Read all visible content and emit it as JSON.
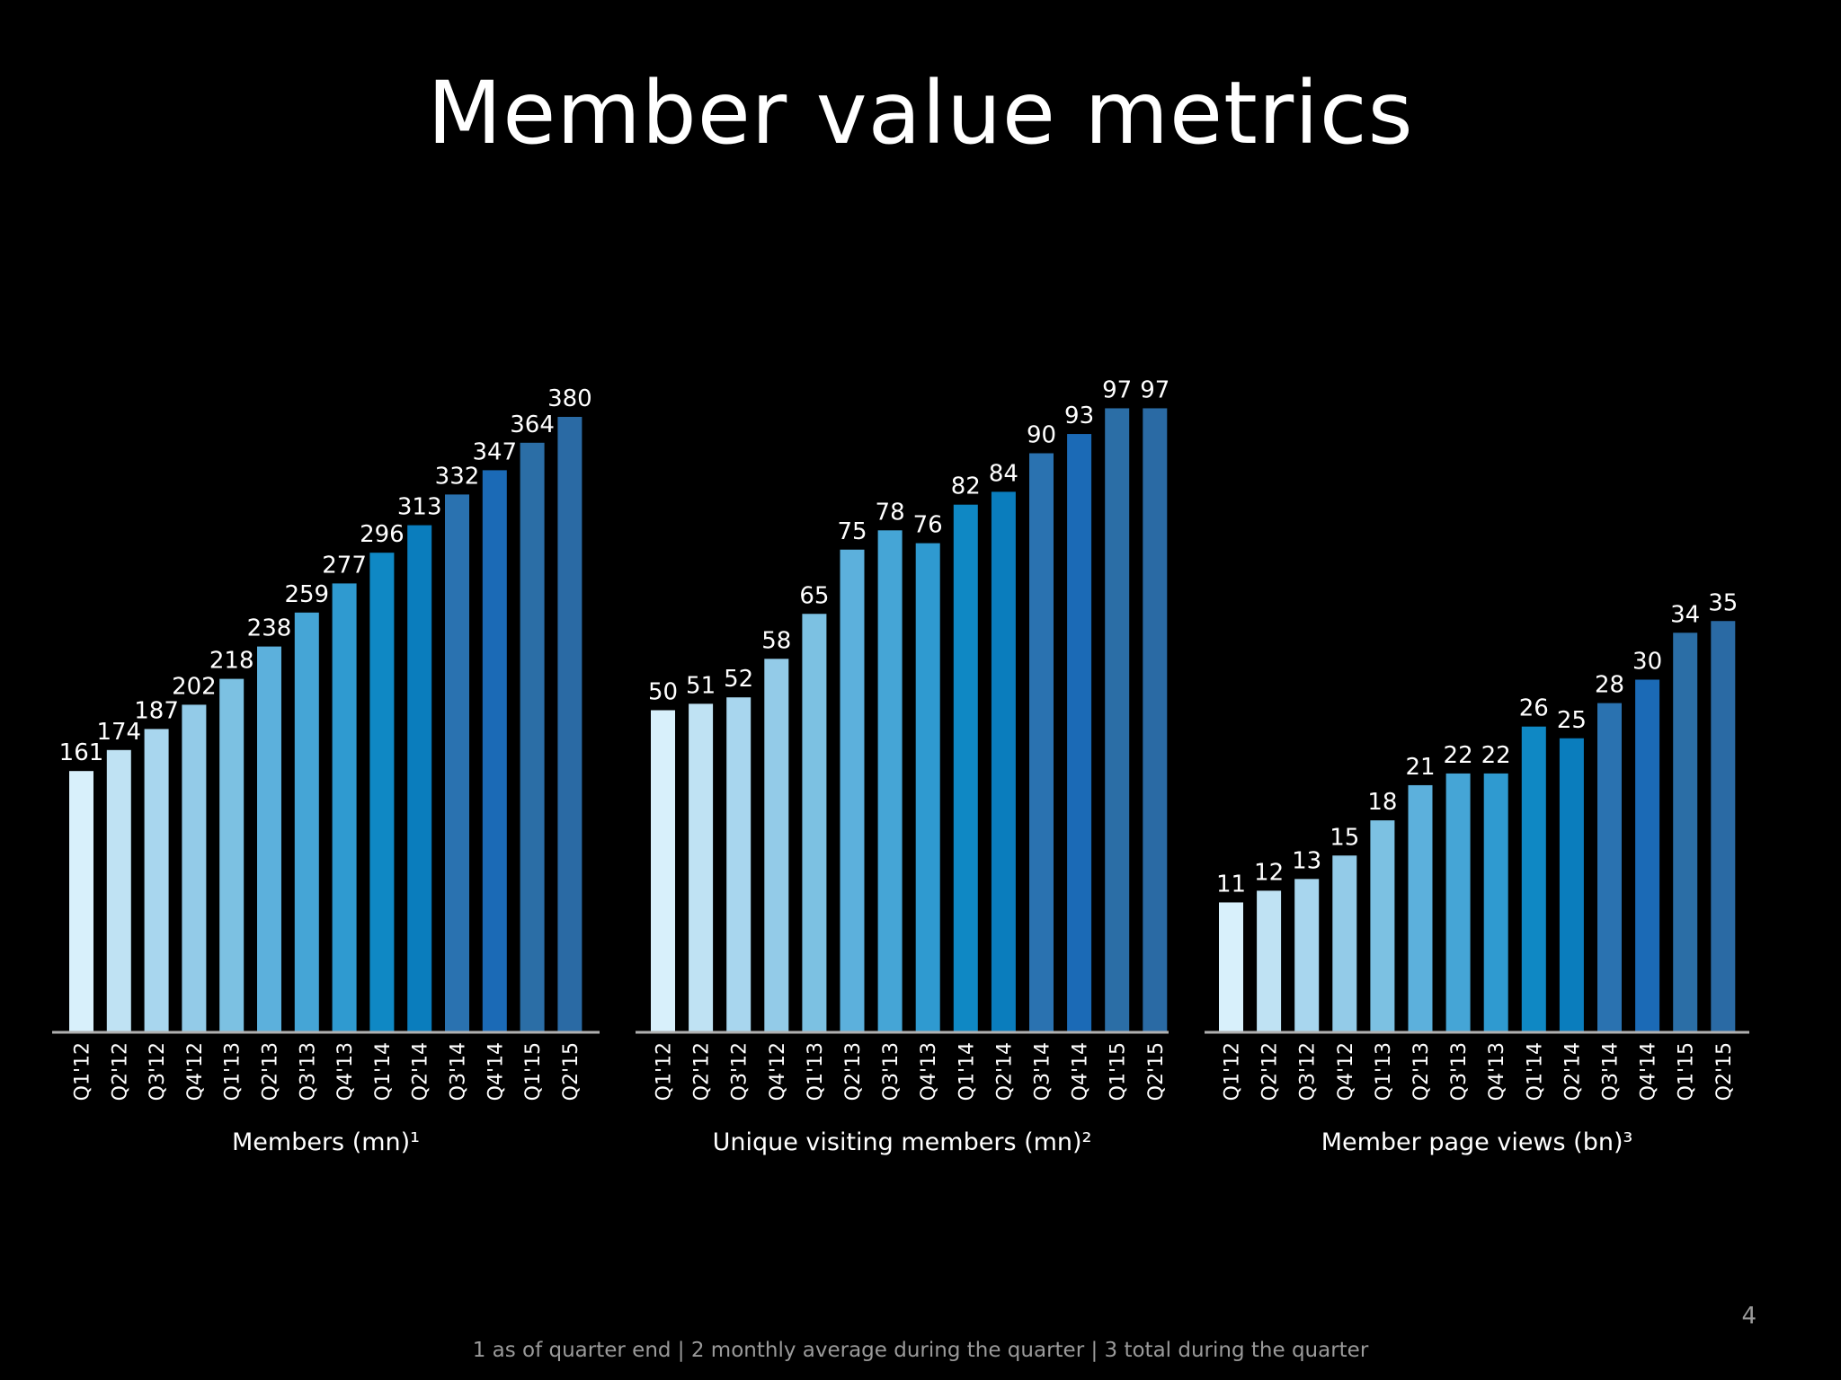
{
  "title": "Member value metrics",
  "page_number": "4",
  "footnote": "1 as of quarter end | 2 monthly average during the quarter | 3 total during the quarter",
  "colors": {
    "background": "#000000",
    "axis": "#b0b0b0",
    "bar_gradient": [
      "#d8f0fb",
      "#bfe2f3",
      "#a8d6ee",
      "#93cbe8",
      "#7cc1e2",
      "#5cb0dc",
      "#45a5d6",
      "#2f9ad0",
      "#0f88c4",
      "#0a7dbd",
      "#2a72b0",
      "#1b6ab6",
      "#2b6ea6",
      "#2a6aa4"
    ]
  },
  "chart_data": [
    {
      "type": "bar",
      "title": "Members (mn)¹",
      "categories": [
        "Q1'12",
        "Q2'12",
        "Q3'12",
        "Q4'12",
        "Q1'13",
        "Q2'13",
        "Q3'13",
        "Q4'13",
        "Q1'14",
        "Q2'14",
        "Q3'14",
        "Q4'14",
        "Q1'15",
        "Q2'15"
      ],
      "values": [
        161,
        174,
        187,
        202,
        218,
        238,
        259,
        277,
        296,
        313,
        332,
        347,
        364,
        380
      ],
      "ylim": [
        0,
        400
      ],
      "grid": false,
      "data_labels": true
    },
    {
      "type": "bar",
      "title": "Unique visiting members (mn)²",
      "categories": [
        "Q1'12",
        "Q2'12",
        "Q3'12",
        "Q4'12",
        "Q1'13",
        "Q2'13",
        "Q3'13",
        "Q4'13",
        "Q1'14",
        "Q2'14",
        "Q3'14",
        "Q4'14",
        "Q1'15",
        "Q2'15"
      ],
      "values": [
        50,
        51,
        52,
        58,
        65,
        75,
        78,
        76,
        82,
        84,
        90,
        93,
        97,
        97
      ],
      "ylim": [
        0,
        100
      ],
      "grid": false,
      "data_labels": true
    },
    {
      "type": "bar",
      "title": "Member page views (bn)³",
      "categories": [
        "Q1'12",
        "Q2'12",
        "Q3'12",
        "Q4'12",
        "Q1'13",
        "Q2'13",
        "Q3'13",
        "Q4'13",
        "Q1'14",
        "Q2'14",
        "Q3'14",
        "Q4'14",
        "Q1'15",
        "Q2'15"
      ],
      "values": [
        11,
        12,
        13,
        15,
        18,
        21,
        22,
        22,
        26,
        25,
        28,
        30,
        34,
        35
      ],
      "ylim": [
        0,
        50
      ],
      "grid": false,
      "data_labels": true
    }
  ]
}
